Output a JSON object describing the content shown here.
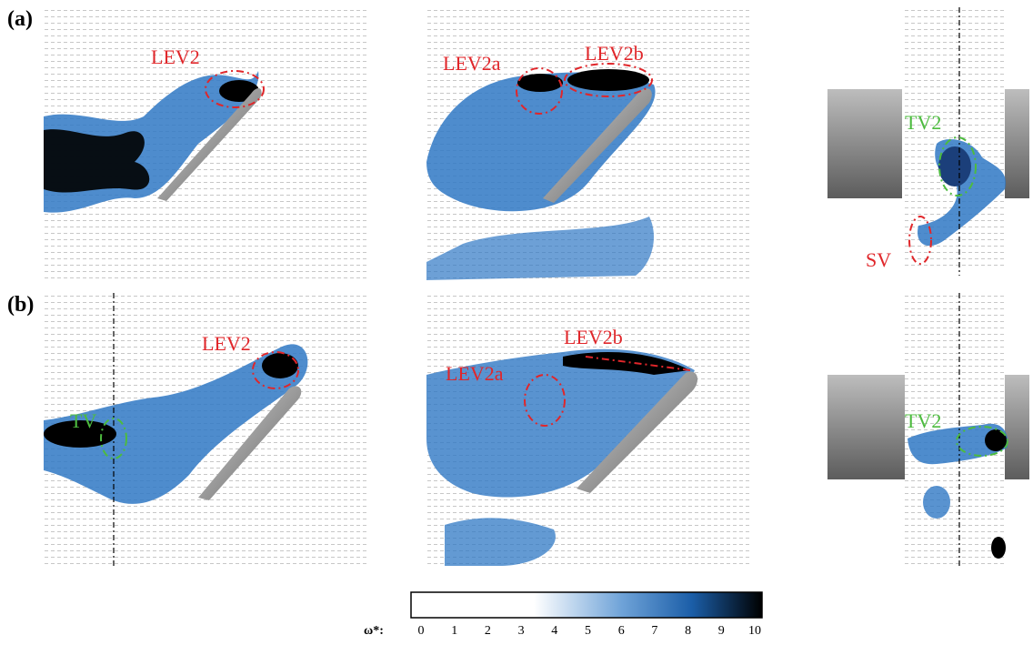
{
  "rows": [
    {
      "label": "(a)"
    },
    {
      "label": "(b)"
    }
  ],
  "annotations": {
    "a_left": [
      "LEV2"
    ],
    "a_mid": [
      "LEV2a",
      "LEV2b"
    ],
    "a_right": [
      "TV2",
      "SV"
    ],
    "b_left": [
      "LEV2",
      "TV"
    ],
    "b_mid": [
      "LEV2b",
      "LEV2a"
    ],
    "b_right": [
      "TV2"
    ]
  },
  "colorbar": {
    "label": "ω*:",
    "ticks": [
      "0",
      "1",
      "2",
      "3",
      "4",
      "5",
      "6",
      "7",
      "8",
      "9",
      "10"
    ],
    "colors": [
      "#ffffff",
      "#6fa3d8",
      "#1b5ea8",
      "#000000"
    ]
  },
  "colors": {
    "vortex_annotation": "#e0262a",
    "tip_vortex_annotation": "#4dbb3f",
    "vorticity_low": "#ffffff",
    "vorticity_mid": "#2f78c4",
    "vorticity_high": "#000000"
  }
}
